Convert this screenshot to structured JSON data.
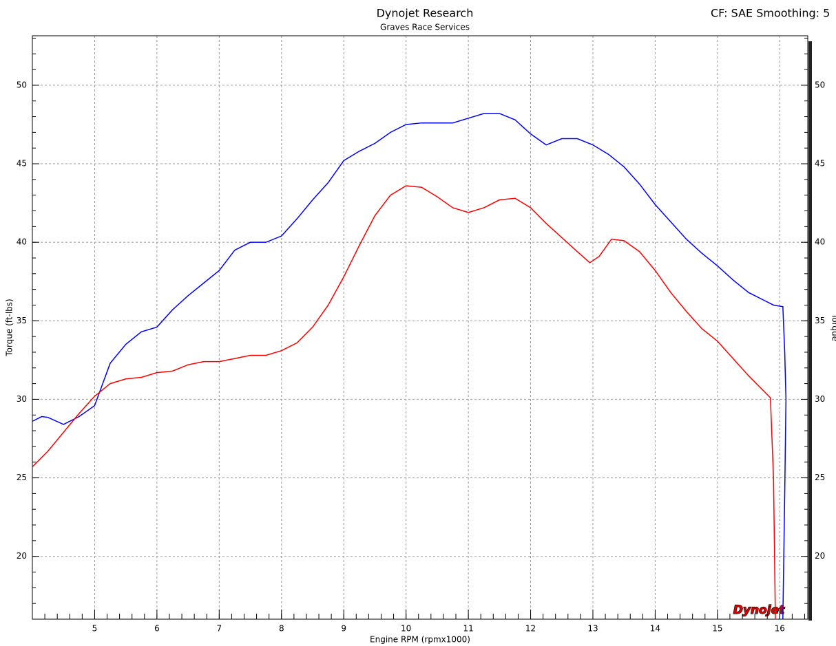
{
  "chart_data": {
    "type": "line",
    "title": "Dynojet Research",
    "subtitle": "Graves Race Services",
    "corner_note": "CF: SAE Smoothing: 5",
    "logo": "Dynojet",
    "xlabel": "Engine RPM (rpmx1000)",
    "ylabel": "Torque (ft-lbs)",
    "y2label": "Torque",
    "xlim": [
      4,
      16.45
    ],
    "ylim": [
      16,
      53.15
    ],
    "y2lim": [
      16,
      53.15
    ],
    "xticks": [
      5,
      6,
      7,
      8,
      9,
      10,
      11,
      12,
      13,
      14,
      15,
      16
    ],
    "yticks": [
      20,
      25,
      30,
      35,
      40,
      45,
      50
    ],
    "y2ticks": [
      20,
      25,
      30,
      35,
      40,
      45,
      50
    ],
    "grid": true,
    "series": [
      {
        "color": "#0000ff",
        "x": [
          4.0,
          4.15,
          4.25,
          4.5,
          4.75,
          5.0,
          5.25,
          5.5,
          5.75,
          6.0,
          6.25,
          6.5,
          6.75,
          7.0,
          7.25,
          7.5,
          7.75,
          8.0,
          8.25,
          8.5,
          8.75,
          9.0,
          9.25,
          9.5,
          9.75,
          10.0,
          10.25,
          10.5,
          10.75,
          11.0,
          11.25,
          11.5,
          11.75,
          12.0,
          12.25,
          12.5,
          12.75,
          13.0,
          13.25,
          13.5,
          13.75,
          14.0,
          14.25,
          14.5,
          14.75,
          15.0,
          15.25,
          15.5,
          15.75,
          15.9,
          16.05,
          16.08,
          16.1,
          16.08,
          16.05
        ],
        "values": [
          28.6,
          28.9,
          28.85,
          28.4,
          28.9,
          29.6,
          32.3,
          33.5,
          34.3,
          34.6,
          35.7,
          36.6,
          37.4,
          38.2,
          39.5,
          40.0,
          40.0,
          40.4,
          41.5,
          42.7,
          43.8,
          45.2,
          45.8,
          46.3,
          47.0,
          47.5,
          47.6,
          47.6,
          47.6,
          47.9,
          48.2,
          48.2,
          47.8,
          46.9,
          46.2,
          46.6,
          46.6,
          46.2,
          45.6,
          44.8,
          43.7,
          42.4,
          41.3,
          40.2,
          39.3,
          38.5,
          37.6,
          36.8,
          36.3,
          36.0,
          35.9,
          33.0,
          30.0,
          24.0,
          16.0
        ]
      },
      {
        "color": "#ff0000",
        "x": [
          4.0,
          4.25,
          4.5,
          4.75,
          5.0,
          5.25,
          5.5,
          5.75,
          6.0,
          6.25,
          6.5,
          6.75,
          7.0,
          7.25,
          7.5,
          7.75,
          8.0,
          8.25,
          8.5,
          8.75,
          9.0,
          9.25,
          9.5,
          9.75,
          10.0,
          10.25,
          10.5,
          10.75,
          11.0,
          11.25,
          11.5,
          11.75,
          12.0,
          12.25,
          12.5,
          12.75,
          12.95,
          13.1,
          13.3,
          13.5,
          13.75,
          14.0,
          14.25,
          14.5,
          14.75,
          15.0,
          15.25,
          15.5,
          15.75,
          15.85,
          15.9,
          15.93
        ],
        "values": [
          25.7,
          26.7,
          27.9,
          29.1,
          30.2,
          31.0,
          31.3,
          31.4,
          31.7,
          31.8,
          32.2,
          32.4,
          32.4,
          32.6,
          32.8,
          32.8,
          33.1,
          33.6,
          34.6,
          36.0,
          37.8,
          39.8,
          41.7,
          43.0,
          43.6,
          43.5,
          42.9,
          42.2,
          41.9,
          42.2,
          42.7,
          42.8,
          42.2,
          41.2,
          40.3,
          39.4,
          38.7,
          39.1,
          40.2,
          40.1,
          39.4,
          38.2,
          36.8,
          35.6,
          34.5,
          33.7,
          32.6,
          31.5,
          30.5,
          30.1,
          25.0,
          16.0
        ]
      }
    ]
  }
}
